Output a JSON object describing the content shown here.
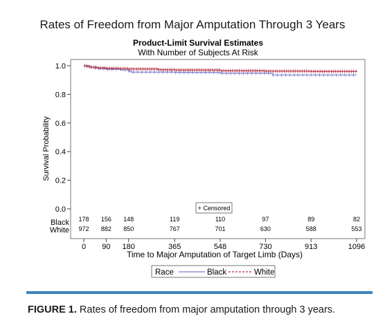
{
  "figure_title": "Rates of Freedom from Major Amputation Through 3 Years",
  "caption": {
    "label": "FIGURE 1.",
    "text": " Rates of freedom from major amputation through 3 years."
  },
  "colors": {
    "black_series": "#7b7fd0",
    "white_series": "#b3293a",
    "rule": "#3f82b8"
  },
  "chart_data": {
    "type": "line",
    "title": "Product-Limit Survival Estimates",
    "subtitle": "With Number of Subjects At Risk",
    "xlabel": "Time to Major Amputation of Target Limb (Days)",
    "ylabel": "Survival Probability",
    "xlim": [
      0,
      1096
    ],
    "ylim": [
      0,
      1.0
    ],
    "x_ticks": [
      0,
      90,
      180,
      365,
      548,
      730,
      913,
      1096
    ],
    "y_ticks": [
      "0.0",
      "0.2",
      "0.4",
      "0.6",
      "0.8",
      "1.0"
    ],
    "censored_label": "+ Censored",
    "legend": {
      "title": "Race",
      "entries": [
        "Black",
        "White"
      ],
      "placement": "bottom"
    },
    "grid": false,
    "series": [
      {
        "name": "Black",
        "style": "solid",
        "x": [
          0,
          20,
          45,
          60,
          90,
          150,
          180,
          190,
          365,
          548,
          730,
          760,
          913,
          1096
        ],
        "y": [
          1.0,
          0.99,
          0.985,
          0.98,
          0.975,
          0.97,
          0.962,
          0.955,
          0.953,
          0.947,
          0.947,
          0.935,
          0.935,
          0.935
        ]
      },
      {
        "name": "White",
        "style": "dashed",
        "x": [
          0,
          10,
          25,
          50,
          90,
          140,
          180,
          300,
          365,
          548,
          730,
          913,
          1096
        ],
        "y": [
          1.0,
          0.995,
          0.99,
          0.985,
          0.982,
          0.98,
          0.977,
          0.972,
          0.97,
          0.965,
          0.962,
          0.96,
          0.958
        ]
      }
    ],
    "at_risk": {
      "groups": [
        "Black",
        "White"
      ],
      "times": [
        0,
        90,
        180,
        365,
        548,
        730,
        913,
        1096
      ],
      "Black": [
        178,
        156,
        148,
        119,
        110,
        97,
        89,
        82
      ],
      "White": [
        972,
        882,
        850,
        767,
        701,
        630,
        588,
        553
      ]
    }
  }
}
